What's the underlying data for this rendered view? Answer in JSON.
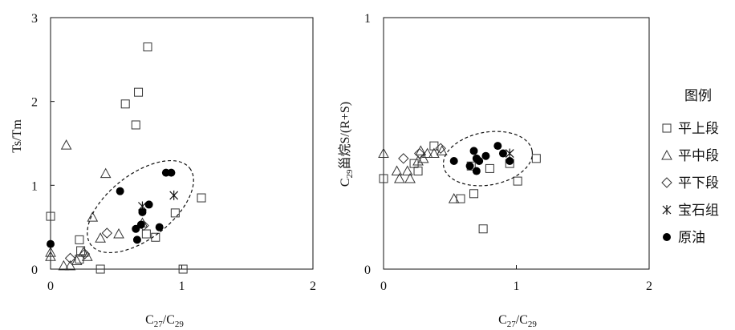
{
  "legend": {
    "title": "图例",
    "items": [
      {
        "key": "square",
        "label": "平上段"
      },
      {
        "key": "triangle",
        "label": "平中段"
      },
      {
        "key": "diamond",
        "label": "平下段"
      },
      {
        "key": "star",
        "label": "宝石组"
      },
      {
        "key": "circle",
        "label": "原油"
      }
    ]
  },
  "chart_data": [
    {
      "type": "scatter",
      "xlabel": "C27/C29",
      "ylabel": "Ts/Tm",
      "xlim": [
        0,
        2
      ],
      "ylim": [
        0,
        3
      ],
      "xticks": [
        "0",
        "1",
        "2"
      ],
      "yticks": [
        "0",
        "1",
        "2",
        "3"
      ],
      "grid": false,
      "annotation": "dashed ellipse around 原油 cluster",
      "series": [
        {
          "name": "平上段",
          "marker": "square",
          "points": [
            [
              0.0,
              0.63
            ],
            [
              0.22,
              0.35
            ],
            [
              0.23,
              0.22
            ],
            [
              0.22,
              0.12
            ],
            [
              0.38,
              0.0
            ],
            [
              0.57,
              1.97
            ],
            [
              0.65,
              1.72
            ],
            [
              0.67,
              2.11
            ],
            [
              0.74,
              2.65
            ],
            [
              0.73,
              0.42
            ],
            [
              0.8,
              0.38
            ],
            [
              0.95,
              0.67
            ],
            [
              1.01,
              0.0
            ],
            [
              1.15,
              0.85
            ]
          ]
        },
        {
          "name": "平中段",
          "marker": "triangle",
          "points": [
            [
              0.0,
              0.2
            ],
            [
              0.0,
              0.15
            ],
            [
              0.12,
              1.48
            ],
            [
              0.1,
              0.04
            ],
            [
              0.15,
              0.04
            ],
            [
              0.2,
              0.1
            ],
            [
              0.25,
              0.2
            ],
            [
              0.28,
              0.15
            ],
            [
              0.32,
              0.62
            ],
            [
              0.38,
              0.37
            ],
            [
              0.42,
              1.14
            ],
            [
              0.52,
              0.42
            ],
            [
              0.7,
              0.55
            ]
          ]
        },
        {
          "name": "平下段",
          "marker": "diamond",
          "points": [
            [
              0.15,
              0.13
            ],
            [
              0.26,
              0.18
            ],
            [
              0.43,
              0.43
            ],
            [
              0.71,
              0.52
            ]
          ]
        },
        {
          "name": "宝石组",
          "marker": "star",
          "points": [
            [
              0.7,
              0.75
            ],
            [
              0.94,
              0.88
            ]
          ]
        },
        {
          "name": "原油",
          "marker": "circle",
          "points": [
            [
              0.0,
              0.3
            ],
            [
              0.53,
              0.93
            ],
            [
              0.65,
              0.48
            ],
            [
              0.66,
              0.35
            ],
            [
              0.69,
              0.53
            ],
            [
              0.7,
              0.68
            ],
            [
              0.75,
              0.77
            ],
            [
              0.83,
              0.5
            ],
            [
              0.88,
              1.15
            ],
            [
              0.92,
              1.15
            ]
          ]
        }
      ]
    },
    {
      "type": "scatter",
      "xlabel": "C27/C29",
      "ylabel": "C29甾烷S/(R+S)",
      "xlim": [
        0,
        2
      ],
      "ylim": [
        0,
        1
      ],
      "xticks": [
        "0",
        "1",
        "2"
      ],
      "yticks": [
        "0",
        "1"
      ],
      "grid": false,
      "annotation": "dashed ellipse around 原油 cluster",
      "series": [
        {
          "name": "平上段",
          "marker": "square",
          "points": [
            [
              0.0,
              0.36
            ],
            [
              0.23,
              0.42
            ],
            [
              0.26,
              0.39
            ],
            [
              0.38,
              0.49
            ],
            [
              0.58,
              0.28
            ],
            [
              0.66,
              0.41
            ],
            [
              0.68,
              0.3
            ],
            [
              0.75,
              0.16
            ],
            [
              0.8,
              0.4
            ],
            [
              0.95,
              0.42
            ],
            [
              1.01,
              0.35
            ],
            [
              1.15,
              0.44
            ]
          ]
        },
        {
          "name": "平中段",
          "marker": "triangle",
          "points": [
            [
              0.0,
              0.46
            ],
            [
              0.1,
              0.39
            ],
            [
              0.12,
              0.36
            ],
            [
              0.18,
              0.39
            ],
            [
              0.2,
              0.36
            ],
            [
              0.26,
              0.43
            ],
            [
              0.28,
              0.47
            ],
            [
              0.3,
              0.44
            ],
            [
              0.33,
              0.46
            ],
            [
              0.38,
              0.46
            ],
            [
              0.44,
              0.47
            ],
            [
              0.53,
              0.28
            ]
          ]
        },
        {
          "name": "平下段",
          "marker": "diamond",
          "points": [
            [
              0.15,
              0.44
            ],
            [
              0.27,
              0.46
            ],
            [
              0.43,
              0.48
            ]
          ]
        },
        {
          "name": "宝石组",
          "marker": "star",
          "points": [
            [
              0.95,
              0.46
            ]
          ]
        },
        {
          "name": "原油",
          "marker": "circle",
          "points": [
            [
              0.53,
              0.43
            ],
            [
              0.65,
              0.41
            ],
            [
              0.68,
              0.47
            ],
            [
              0.7,
              0.39
            ],
            [
              0.7,
              0.44
            ],
            [
              0.72,
              0.43
            ],
            [
              0.77,
              0.45
            ],
            [
              0.86,
              0.49
            ],
            [
              0.9,
              0.46
            ],
            [
              0.95,
              0.43
            ]
          ]
        }
      ]
    }
  ]
}
